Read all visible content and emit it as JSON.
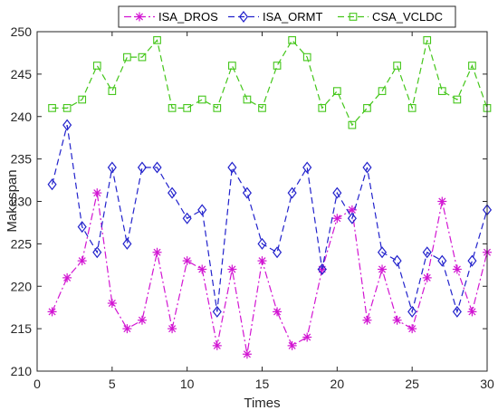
{
  "chart_data": {
    "type": "line",
    "title": "",
    "xlabel": "Times",
    "ylabel": "Makespan",
    "xlim": [
      0,
      30
    ],
    "ylim": [
      210,
      250
    ],
    "xticks": [
      0,
      5,
      10,
      15,
      20,
      25,
      30
    ],
    "yticks": [
      210,
      215,
      220,
      225,
      230,
      235,
      240,
      245,
      250
    ],
    "grid": false,
    "legend_position": "top-center",
    "x": [
      1,
      2,
      3,
      4,
      5,
      6,
      7,
      8,
      9,
      10,
      11,
      12,
      13,
      14,
      15,
      16,
      17,
      18,
      19,
      20,
      21,
      22,
      23,
      24,
      25,
      26,
      27,
      28,
      29,
      30
    ],
    "series": [
      {
        "name": "ISA_DROS",
        "color": "#d215d2",
        "marker": "asterisk",
        "line_style": "dash-dot",
        "values": [
          217,
          221,
          223,
          231,
          218,
          215,
          216,
          224,
          215,
          223,
          222,
          213,
          222,
          212,
          223,
          217,
          213,
          214,
          222,
          228,
          229,
          216,
          222,
          216,
          215,
          221,
          230,
          222,
          217,
          224
        ]
      },
      {
        "name": "ISA_ORMT",
        "color": "#2222cc",
        "marker": "diamond",
        "line_style": "dashed",
        "values": [
          232,
          239,
          227,
          224,
          234,
          225,
          234,
          234,
          231,
          228,
          229,
          217,
          234,
          231,
          225,
          224,
          231,
          234,
          222,
          231,
          228,
          234,
          224,
          223,
          217,
          224,
          223,
          217,
          223,
          229
        ]
      },
      {
        "name": "CSA_VCLDC",
        "color": "#44c61a",
        "marker": "square",
        "line_style": "dashed",
        "values": [
          241,
          241,
          242,
          246,
          243,
          247,
          247,
          249,
          241,
          241,
          242,
          241,
          246,
          242,
          241,
          246,
          249,
          247,
          241,
          243,
          239,
          241,
          243,
          246,
          241,
          249,
          243,
          242,
          246,
          241
        ]
      }
    ]
  }
}
